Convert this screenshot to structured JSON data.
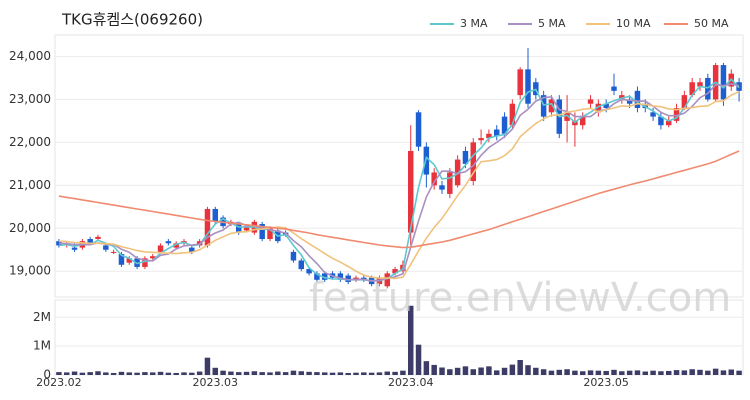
{
  "watermark": "feature.enViewV.com",
  "chart_data": [
    {
      "type": "candlestick",
      "title": "TKG휴켐스(069260)",
      "categories": [
        "2023.02",
        null,
        null,
        null,
        null,
        null,
        null,
        null,
        null,
        null,
        null,
        null,
        null,
        null,
        null,
        null,
        null,
        null,
        null,
        null,
        "2023.03",
        null,
        null,
        null,
        null,
        null,
        null,
        null,
        null,
        null,
        null,
        null,
        null,
        null,
        null,
        null,
        null,
        null,
        null,
        null,
        null,
        null,
        null,
        null,
        null,
        "2023.04",
        null,
        null,
        null,
        null,
        null,
        null,
        null,
        null,
        null,
        null,
        null,
        null,
        null,
        null,
        null,
        null,
        null,
        null,
        null,
        null,
        null,
        null,
        null,
        null,
        "2023.05",
        null,
        null,
        null,
        null,
        null,
        null,
        null,
        null,
        null,
        null,
        null,
        null,
        null,
        null,
        null,
        null,
        null
      ],
      "open": [
        19700,
        19600,
        19550,
        19550,
        19750,
        19750,
        19600,
        19450,
        19400,
        19200,
        19300,
        19100,
        19300,
        19450,
        19700,
        19550,
        19650,
        19550,
        19600,
        19600,
        20450,
        20250,
        20100,
        20100,
        19950,
        19900,
        20100,
        19750,
        19950,
        19900,
        19450,
        19250,
        19050,
        18950,
        18950,
        18950,
        18950,
        18900,
        18800,
        18850,
        18850,
        18700,
        18650,
        18950,
        19000,
        19900,
        22700,
        21900,
        21000,
        21000,
        20800,
        21000,
        21800,
        21100,
        22050,
        22100,
        22300,
        22600,
        22400,
        23100,
        23700,
        23400,
        23100,
        22700,
        23000,
        22500,
        22400,
        22400,
        22900,
        22700,
        22900,
        23300,
        23000,
        23000,
        23200,
        22900,
        22700,
        22600,
        22400,
        22500,
        22800,
        23100,
        23300,
        23500,
        23000,
        23800,
        23300,
        23400
      ],
      "high": [
        19750,
        19700,
        19650,
        19750,
        19800,
        19850,
        19650,
        19500,
        19450,
        19350,
        19350,
        19350,
        19400,
        19650,
        19750,
        19700,
        19750,
        19600,
        19750,
        20500,
        20500,
        20300,
        20200,
        20150,
        20100,
        20200,
        20150,
        20050,
        20000,
        19950,
        19500,
        19300,
        19100,
        19000,
        19000,
        19000,
        19000,
        18950,
        18900,
        18900,
        18900,
        18900,
        19000,
        19100,
        19250,
        22400,
        22750,
        22000,
        21400,
        21100,
        21400,
        21700,
        21900,
        22100,
        22300,
        22300,
        22400,
        22700,
        23000,
        23750,
        24200,
        23500,
        23200,
        23100,
        23100,
        23100,
        22700,
        22700,
        23100,
        23000,
        23000,
        23600,
        23200,
        23100,
        23300,
        23000,
        22800,
        22700,
        22600,
        22900,
        23200,
        23500,
        23500,
        23600,
        23850,
        23850,
        23700,
        23500
      ],
      "low": [
        19550,
        19550,
        19450,
        19500,
        19600,
        19700,
        19450,
        19400,
        19100,
        19150,
        19050,
        19050,
        19250,
        19400,
        19600,
        19500,
        19600,
        19400,
        19550,
        19550,
        20100,
        20000,
        20050,
        19850,
        19900,
        19850,
        19700,
        19700,
        19650,
        19800,
        19200,
        19000,
        18900,
        18750,
        18750,
        18800,
        18750,
        18700,
        18750,
        18750,
        18650,
        18650,
        18600,
        18900,
        18950,
        19600,
        21800,
        20950,
        20900,
        20800,
        20700,
        20950,
        21400,
        21000,
        21950,
        22000,
        22050,
        22100,
        22300,
        23000,
        22800,
        23000,
        22500,
        22600,
        22100,
        22000,
        21900,
        22300,
        22800,
        22600,
        22700,
        23100,
        22900,
        22800,
        22700,
        22700,
        22500,
        22300,
        22350,
        22450,
        22750,
        23050,
        23200,
        22950,
        22950,
        22850,
        23200,
        22950
      ],
      "close": [
        19600,
        19650,
        19500,
        19700,
        19650,
        19800,
        19500,
        19450,
        19150,
        19300,
        19100,
        19300,
        19350,
        19600,
        19650,
        19650,
        19700,
        19450,
        19700,
        20450,
        20150,
        20050,
        20150,
        19900,
        20050,
        20150,
        19750,
        20000,
        19700,
        19850,
        19250,
        19050,
        18950,
        18800,
        18800,
        18850,
        18800,
        18750,
        18850,
        18800,
        18700,
        18850,
        18950,
        19050,
        19150,
        21800,
        21900,
        21250,
        21300,
        20900,
        21300,
        21600,
        21500,
        22000,
        22100,
        22200,
        22150,
        22200,
        22900,
        23700,
        22900,
        23100,
        22600,
        23000,
        22200,
        22700,
        22500,
        22600,
        23000,
        22900,
        22800,
        23200,
        23100,
        22900,
        22800,
        22800,
        22600,
        22400,
        22500,
        22800,
        23100,
        23400,
        23400,
        23000,
        23800,
        23000,
        23600,
        23200
      ],
      "up_color": "#e8323c",
      "down_color": "#1d5fd1",
      "ylim": [
        18400,
        24500
      ],
      "yticks": [
        {
          "value": 19000,
          "label": "19,000"
        },
        {
          "value": 20000,
          "label": "20,000"
        },
        {
          "value": 21000,
          "label": "21,000"
        },
        {
          "value": 22000,
          "label": "22,000"
        },
        {
          "value": 23000,
          "label": "23,000"
        },
        {
          "value": 24000,
          "label": "24,000"
        }
      ],
      "grid": true,
      "legend": "top-right",
      "series": [
        {
          "name": "3 MA",
          "color": "#5ec8d0",
          "values": [
            19600,
            19620,
            19580,
            19620,
            19620,
            19720,
            19650,
            19580,
            19370,
            19300,
            19180,
            19230,
            19250,
            19420,
            19530,
            19630,
            19670,
            19600,
            19620,
            19870,
            20100,
            20220,
            20120,
            20030,
            20030,
            20030,
            19980,
            19970,
            19820,
            19850,
            19600,
            19380,
            19080,
            18930,
            18850,
            18820,
            18820,
            18800,
            18800,
            18800,
            18780,
            18780,
            18830,
            18950,
            19050,
            20000,
            20950,
            21650,
            21480,
            21150,
            21170,
            21270,
            21470,
            21700,
            21870,
            22100,
            22150,
            22180,
            22420,
            22930,
            23170,
            23230,
            22870,
            22900,
            22600,
            22630,
            22470,
            22600,
            22700,
            22830,
            22900,
            22970,
            23030,
            23070,
            22930,
            22830,
            22730,
            22600,
            22500,
            22570,
            22800,
            23100,
            23300,
            23270,
            23400,
            23270,
            23470,
            23270
          ]
        },
        {
          "name": "5 MA",
          "color": "#a98fc2",
          "values": [
            19650,
            19640,
            19620,
            19620,
            19620,
            19660,
            19630,
            19620,
            19510,
            19440,
            19300,
            19260,
            19240,
            19370,
            19400,
            19520,
            19590,
            19610,
            19630,
            19790,
            19890,
            19960,
            20100,
            20140,
            20060,
            20060,
            20000,
            19970,
            19930,
            19890,
            19710,
            19570,
            19360,
            19180,
            18970,
            18890,
            18840,
            18800,
            18810,
            18810,
            18770,
            18790,
            18830,
            18870,
            18940,
            19560,
            20170,
            20730,
            21080,
            21330,
            21330,
            21270,
            21320,
            21460,
            21700,
            21880,
            22000,
            22130,
            22310,
            22630,
            22770,
            22960,
            23040,
            23060,
            22760,
            22720,
            22600,
            22600,
            22600,
            22740,
            22760,
            22900,
            23000,
            22980,
            22960,
            22960,
            22840,
            22700,
            22620,
            22620,
            22680,
            22840,
            23040,
            23140,
            23340,
            23320,
            23360,
            23320
          ]
        },
        {
          "name": "10 MA",
          "color": "#f0c27c",
          "values": [
            19700,
            19690,
            19670,
            19660,
            19650,
            19650,
            19640,
            19630,
            19570,
            19530,
            19480,
            19450,
            19440,
            19430,
            19420,
            19410,
            19430,
            19440,
            19500,
            19610,
            19720,
            19800,
            19880,
            19910,
            19920,
            19970,
            19980,
            20010,
            20030,
            20010,
            19890,
            19760,
            19640,
            19530,
            19410,
            19300,
            19210,
            19110,
            19000,
            18910,
            18860,
            18840,
            18840,
            18830,
            18860,
            19160,
            19470,
            19770,
            20020,
            20230,
            20490,
            20760,
            21000,
            21290,
            21550,
            21570,
            21600,
            21690,
            21850,
            22130,
            22290,
            22440,
            22550,
            22630,
            22640,
            22700,
            22730,
            22770,
            22790,
            22710,
            22760,
            22800,
            22850,
            22840,
            22900,
            22880,
            22850,
            22830,
            22780,
            22760,
            22790,
            22810,
            22840,
            22850,
            22950,
            22970,
            23100,
            23180
          ]
        },
        {
          "name": "50 MA",
          "color": "#f08a70",
          "values": [
            20750,
            20720,
            20690,
            20660,
            20630,
            20600,
            20570,
            20540,
            20510,
            20480,
            20450,
            20420,
            20390,
            20360,
            20330,
            20300,
            20270,
            20240,
            20210,
            20180,
            20160,
            20140,
            20120,
            20100,
            20080,
            20060,
            20040,
            20020,
            20000,
            19980,
            19950,
            19920,
            19890,
            19850,
            19820,
            19790,
            19760,
            19730,
            19700,
            19670,
            19640,
            19610,
            19590,
            19570,
            19550,
            19560,
            19590,
            19620,
            19650,
            19680,
            19720,
            19770,
            19820,
            19870,
            19920,
            19970,
            20030,
            20090,
            20150,
            20210,
            20270,
            20330,
            20390,
            20450,
            20510,
            20570,
            20630,
            20690,
            20750,
            20810,
            20860,
            20910,
            20960,
            21010,
            21060,
            21100,
            21150,
            21200,
            21250,
            21300,
            21350,
            21400,
            21450,
            21500,
            21560,
            21640,
            21720,
            21800
          ]
        }
      ]
    },
    {
      "type": "bar",
      "color": "#3c3c66",
      "values": [
        100000,
        90000,
        120000,
        80000,
        100000,
        130000,
        90000,
        70000,
        110000,
        90000,
        80000,
        100000,
        90000,
        110000,
        80000,
        70000,
        90000,
        80000,
        120000,
        600000,
        250000,
        150000,
        120000,
        100000,
        110000,
        130000,
        100000,
        90000,
        120000,
        100000,
        150000,
        130000,
        110000,
        100000,
        90000,
        80000,
        90000,
        70000,
        80000,
        90000,
        80000,
        90000,
        120000,
        110000,
        150000,
        2400000,
        1050000,
        480000,
        350000,
        260000,
        200000,
        250000,
        300000,
        200000,
        260000,
        300000,
        160000,
        250000,
        360000,
        520000,
        340000,
        250000,
        200000,
        150000,
        180000,
        200000,
        150000,
        130000,
        160000,
        150000,
        140000,
        180000,
        130000,
        150000,
        160000,
        120000,
        150000,
        130000,
        140000,
        170000,
        160000,
        200000,
        180000,
        150000,
        220000,
        160000,
        190000,
        150000
      ],
      "ylim": [
        0,
        2600000
      ],
      "yticks": [
        0,
        {
          "value": 1000000,
          "label": "1M"
        },
        {
          "value": 2000000,
          "label": "2M"
        }
      ],
      "grid": true
    }
  ]
}
